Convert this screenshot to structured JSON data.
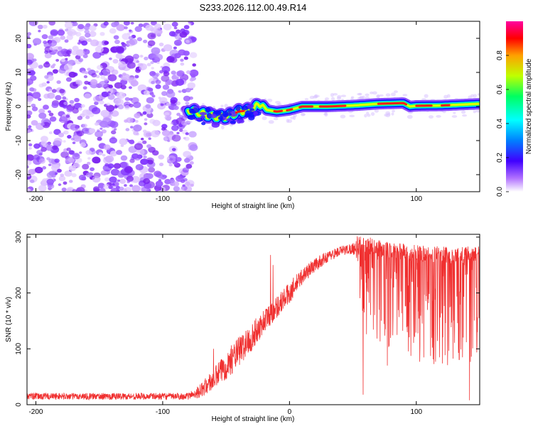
{
  "figure_title": "S233.2026.112.00.49.R14",
  "chart_data": [
    {
      "type": "heatmap",
      "title": "S233.2026.112.00.49.R14",
      "xlabel": "Height of straight line (km)",
      "ylabel": "Frequency (Hz)",
      "xlim": [
        -207,
        150
      ],
      "ylim": [
        -25,
        25
      ],
      "x_ticks": [
        -200,
        -100,
        0,
        100
      ],
      "y_ticks": [
        -20,
        -10,
        0,
        10,
        20
      ],
      "colorbar": {
        "label": "Normalized spectral amplitude",
        "range": [
          0,
          1
        ],
        "ticks": [
          "0.0",
          "0.2",
          "0.4",
          "0.6",
          "0.8"
        ],
        "tick_values": [
          0.0,
          0.2,
          0.4,
          0.6,
          0.8
        ],
        "colors": [
          "#ffffff",
          "#8800ff",
          "#0000ff",
          "#00ffff",
          "#00ff00",
          "#ffff00",
          "#ff0000",
          "#ff00ff"
        ]
      },
      "noise_region_end_km": -80,
      "ridge": {
        "x": [
          -80,
          -70,
          -60,
          -50,
          -40,
          -30,
          -22,
          -18,
          -10,
          0,
          10,
          30,
          50,
          70,
          90,
          95,
          100,
          120,
          150
        ],
        "y": [
          -1,
          -2,
          -3,
          -3,
          -1.5,
          -1,
          1,
          -1,
          -1.5,
          -1,
          0,
          0,
          0.3,
          0.8,
          1,
          0,
          0.2,
          0.3,
          0.8
        ]
      }
    },
    {
      "type": "line",
      "xlabel": "Height of straight line (km)",
      "ylabel": "SNR (10 * v/v)",
      "xlim": [
        -207,
        150
      ],
      "ylim": [
        0,
        305
      ],
      "x_ticks": [
        -200,
        -100,
        0,
        100
      ],
      "y_ticks": [
        0,
        100,
        200,
        300
      ],
      "color": "#f03030",
      "envelope": {
        "x": [
          -207,
          -80,
          -70,
          -60,
          -50,
          -40,
          -30,
          -20,
          -10,
          0,
          10,
          20,
          30,
          40,
          50,
          60,
          80,
          100,
          120,
          150
        ],
        "base": [
          15,
          15,
          25,
          45,
          70,
          95,
          120,
          150,
          175,
          200,
          230,
          250,
          265,
          275,
          280,
          280,
          270,
          265,
          262,
          262
        ],
        "spread": [
          12,
          12,
          25,
          40,
          50,
          55,
          50,
          45,
          40,
          40,
          30,
          25,
          20,
          18,
          20,
          90,
          110,
          110,
          110,
          110
        ]
      },
      "spikes": [
        {
          "x": -15,
          "y": 268
        },
        {
          "x": -13,
          "y": 250
        },
        {
          "x": 58,
          "y": 18
        },
        {
          "x": 142,
          "y": 8
        },
        {
          "x": -60,
          "y": 100
        }
      ]
    }
  ]
}
